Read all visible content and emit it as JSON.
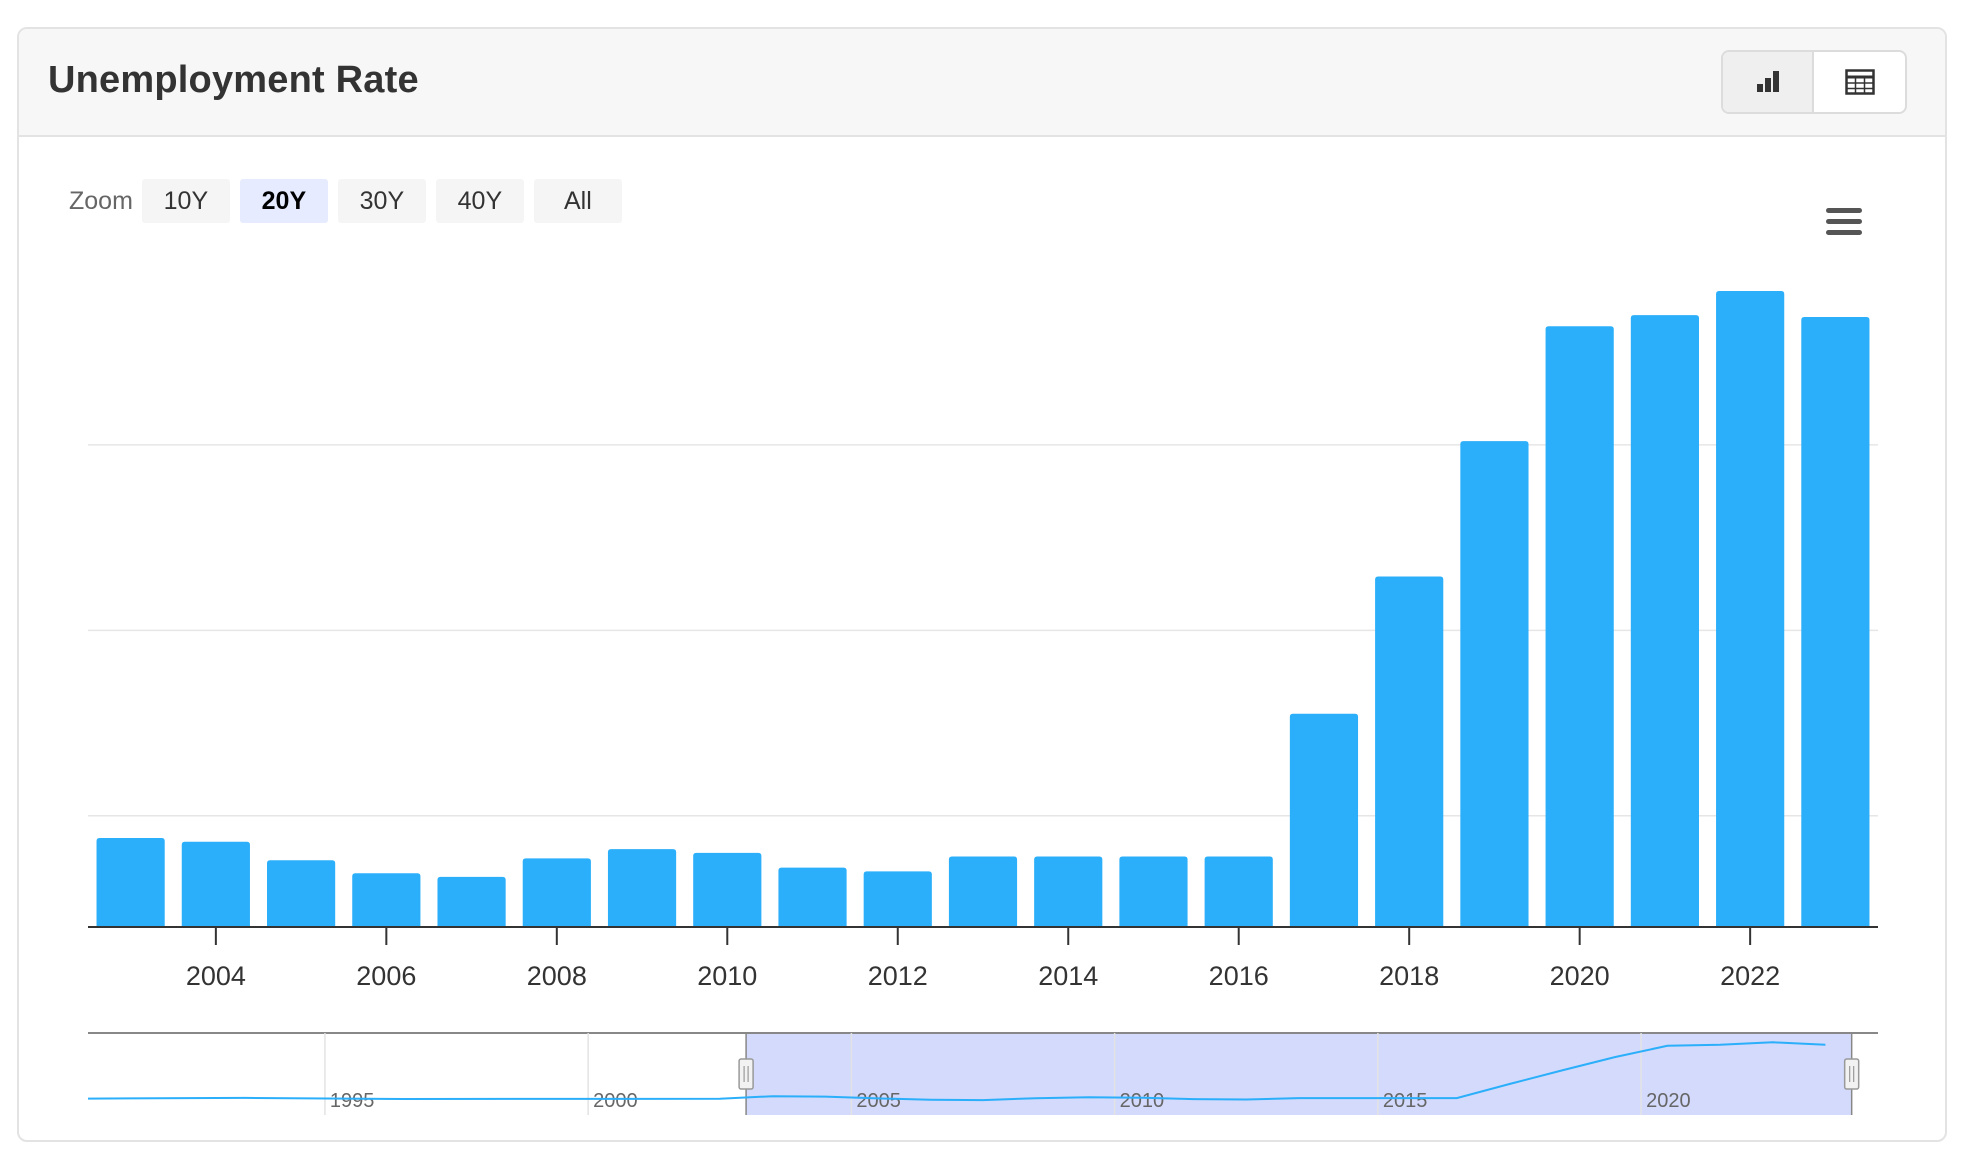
{
  "header": {
    "title": "Unemployment Rate"
  },
  "view_toggle": {
    "active": "chart",
    "options": [
      "chart",
      "table"
    ],
    "icons": [
      "bar-chart-icon",
      "table-icon"
    ]
  },
  "zoom": {
    "label": "Zoom",
    "options": [
      "10Y",
      "20Y",
      "30Y",
      "40Y",
      "All"
    ],
    "selected": "20Y"
  },
  "colors": {
    "bar": "#2baffa",
    "navigator_fill": "#d3dafb",
    "navigator_line": "#2baffa",
    "grid": "#e6e6e6",
    "axis": "#333333"
  },
  "chart_data": {
    "type": "bar",
    "title": "",
    "xlabel": "",
    "ylabel": "",
    "x": [
      2003,
      2004,
      2005,
      2006,
      2007,
      2008,
      2009,
      2010,
      2011,
      2012,
      2013,
      2014,
      2015,
      2016,
      2017,
      2018,
      2019,
      2020,
      2021,
      2022,
      2023
    ],
    "values": [
      4.8,
      4.6,
      3.6,
      2.9,
      2.7,
      3.7,
      4.2,
      4.0,
      3.2,
      3.0,
      3.8,
      3.8,
      3.8,
      3.8,
      11.5,
      18.9,
      26.2,
      32.4,
      33.0,
      34.3,
      32.9
    ],
    "ylim": [
      0,
      35
    ],
    "y_gridlines": [
      6,
      16,
      26
    ],
    "x_tick_labels": [
      "2004",
      "2006",
      "2008",
      "2010",
      "2012",
      "2014",
      "2016",
      "2018",
      "2020",
      "2022"
    ],
    "y_labels_visible": false,
    "grid": true,
    "legend": "none",
    "navigator": {
      "range": [
        1990,
        2024
      ],
      "selected_range": [
        2002.5,
        2023.5
      ],
      "tick_labels": [
        "1995",
        "2000",
        "2005",
        "2010",
        "2015",
        "2020"
      ]
    }
  }
}
